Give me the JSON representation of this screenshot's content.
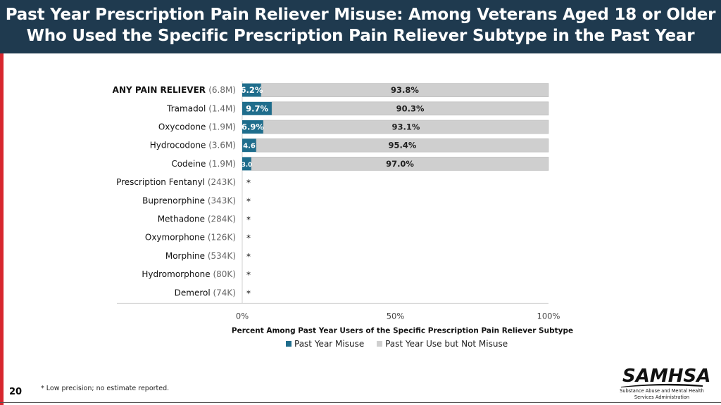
{
  "header": {
    "title_line1": "Past Year Prescription Pain Reliever Misuse: Among Veterans Aged 18 or Older",
    "title_line2": "Who Used the Specific Prescription Pain Reliever Subtype in the Past Year"
  },
  "footer": {
    "page_number": "20",
    "footnote": "* Low precision; no estimate reported.",
    "logo_word": "SAMHSA",
    "logo_sub_line1": "Substance Abuse and Mental Health",
    "logo_sub_line2": "Services Administration"
  },
  "colors": {
    "misuse": "#1f6d8c",
    "not_misuse": "#cfcfcf",
    "header_bg": "#1f3a4f",
    "accent_red": "#d7262e"
  },
  "chart_data": {
    "type": "bar",
    "orientation": "horizontal",
    "stacked": true,
    "xlabel": "Percent Among Past Year Users of the Specific Prescription Pain Reliever Subtype",
    "xlim": [
      0,
      100
    ],
    "x_ticks": [
      "0%",
      "50%",
      "100%"
    ],
    "categories": [
      {
        "name": "ANY PAIN RELIEVER",
        "count": "(6.8M)",
        "misuse": 6.2,
        "misuse_label": "6.2%",
        "not_misuse": 93.8,
        "not_misuse_label": "93.8%",
        "suppressed": false,
        "bold": true
      },
      {
        "name": "Tramadol",
        "count": "(1.4M)",
        "misuse": 9.7,
        "misuse_label": "9.7%",
        "not_misuse": 90.3,
        "not_misuse_label": "90.3%",
        "suppressed": false
      },
      {
        "name": "Oxycodone",
        "count": "(1.9M)",
        "misuse": 6.9,
        "misuse_label": "6.9%",
        "not_misuse": 93.1,
        "not_misuse_label": "93.1%",
        "suppressed": false
      },
      {
        "name": "Hydrocodone",
        "count": "(3.6M)",
        "misuse": 4.6,
        "misuse_label": "4.6",
        "not_misuse": 95.4,
        "not_misuse_label": "95.4%",
        "suppressed": false
      },
      {
        "name": "Codeine",
        "count": "(1.9M)",
        "misuse": 3.0,
        "misuse_label": "3.0",
        "not_misuse": 97.0,
        "not_misuse_label": "97.0%",
        "suppressed": false
      },
      {
        "name": "Prescription Fentanyl",
        "count": "(243K)",
        "suppressed": true,
        "suppressed_label": "*"
      },
      {
        "name": "Buprenorphine",
        "count": "(343K)",
        "suppressed": true,
        "suppressed_label": "*"
      },
      {
        "name": "Methadone",
        "count": "(284K)",
        "suppressed": true,
        "suppressed_label": "*"
      },
      {
        "name": "Oxymorphone",
        "count": "(126K)",
        "suppressed": true,
        "suppressed_label": "*"
      },
      {
        "name": "Morphine",
        "count": "(534K)",
        "suppressed": true,
        "suppressed_label": "*"
      },
      {
        "name": "Hydromorphone",
        "count": "(80K)",
        "suppressed": true,
        "suppressed_label": "*"
      },
      {
        "name": "Demerol",
        "count": "(74K)",
        "suppressed": true,
        "suppressed_label": "*"
      }
    ],
    "series": [
      {
        "name": "Past Year Misuse",
        "key": "misuse"
      },
      {
        "name": "Past Year Use but Not Misuse",
        "key": "not_misuse"
      }
    ],
    "legend_position": "bottom-center"
  }
}
